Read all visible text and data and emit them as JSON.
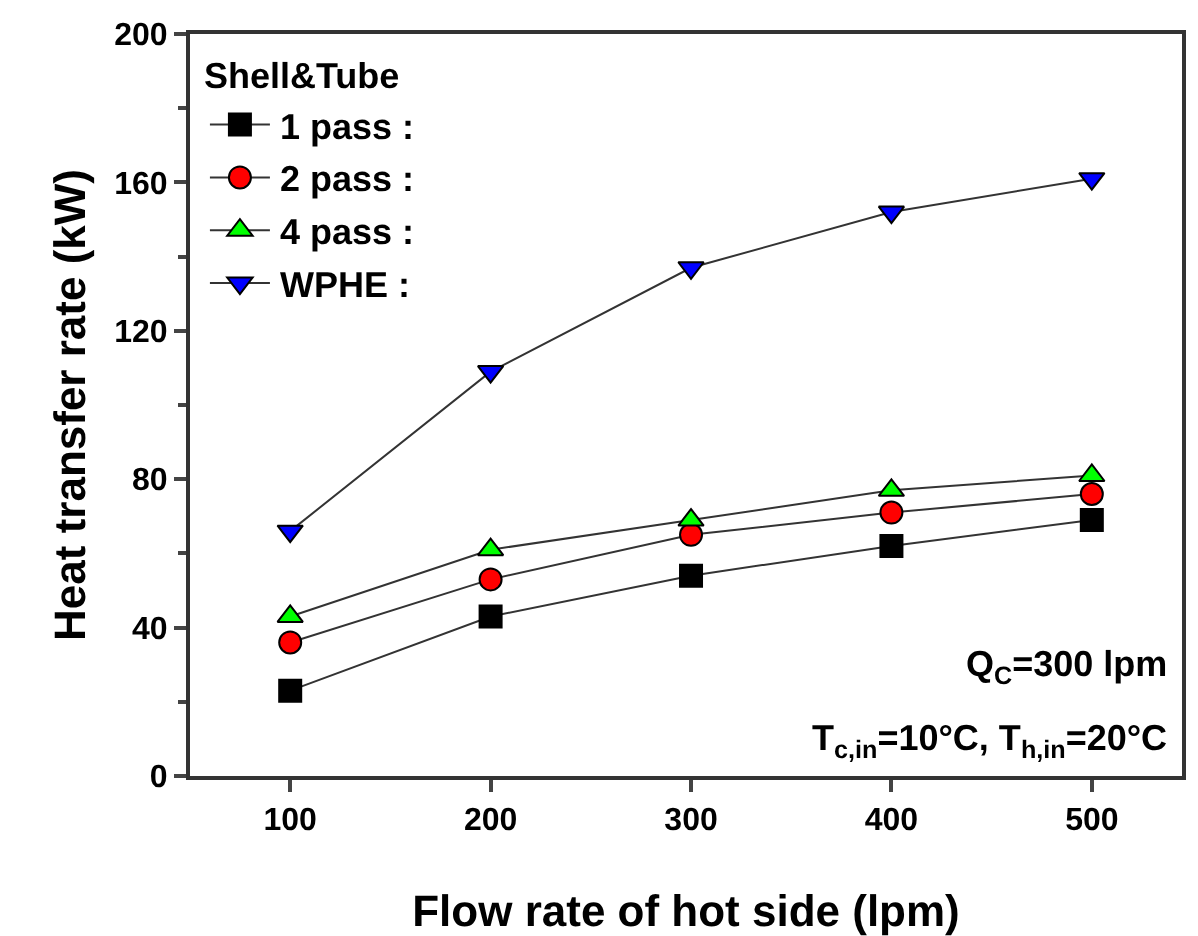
{
  "chart_data": {
    "type": "line",
    "xlabel": "Flow rate of hot side (lpm)",
    "ylabel": "Heat transfer rate (kW)",
    "legend_title": "Shell&Tube",
    "legend": "top left",
    "x": [
      100,
      200,
      300,
      400,
      500
    ],
    "series": [
      {
        "name": "1 pass :",
        "color": "#000000",
        "marker": "square",
        "values": [
          23,
          43,
          54,
          62,
          69
        ]
      },
      {
        "name": "2 pass :",
        "color": "#ff0000",
        "marker": "circle",
        "values": [
          36,
          53,
          65,
          71,
          76
        ]
      },
      {
        "name": "4 pass :",
        "color": "#00ff00",
        "marker": "triangle",
        "values": [
          43,
          61,
          69,
          77,
          81
        ]
      },
      {
        "name": "WPHE :",
        "color": "#0000ff",
        "marker": "triangle-down",
        "values": [
          66,
          109,
          137,
          152,
          161
        ]
      }
    ],
    "xlim": [
      50,
      545
    ],
    "xticks": [
      100,
      200,
      300,
      400,
      500
    ],
    "ylim": [
      0,
      200
    ],
    "yticks": [
      0,
      40,
      80,
      120,
      160,
      200
    ],
    "grid": false,
    "annotations": [
      "Q$_{C}$=300 lpm",
      "T$_{c,in}$=10°C, T$_{h,in}$=20°C"
    ]
  }
}
